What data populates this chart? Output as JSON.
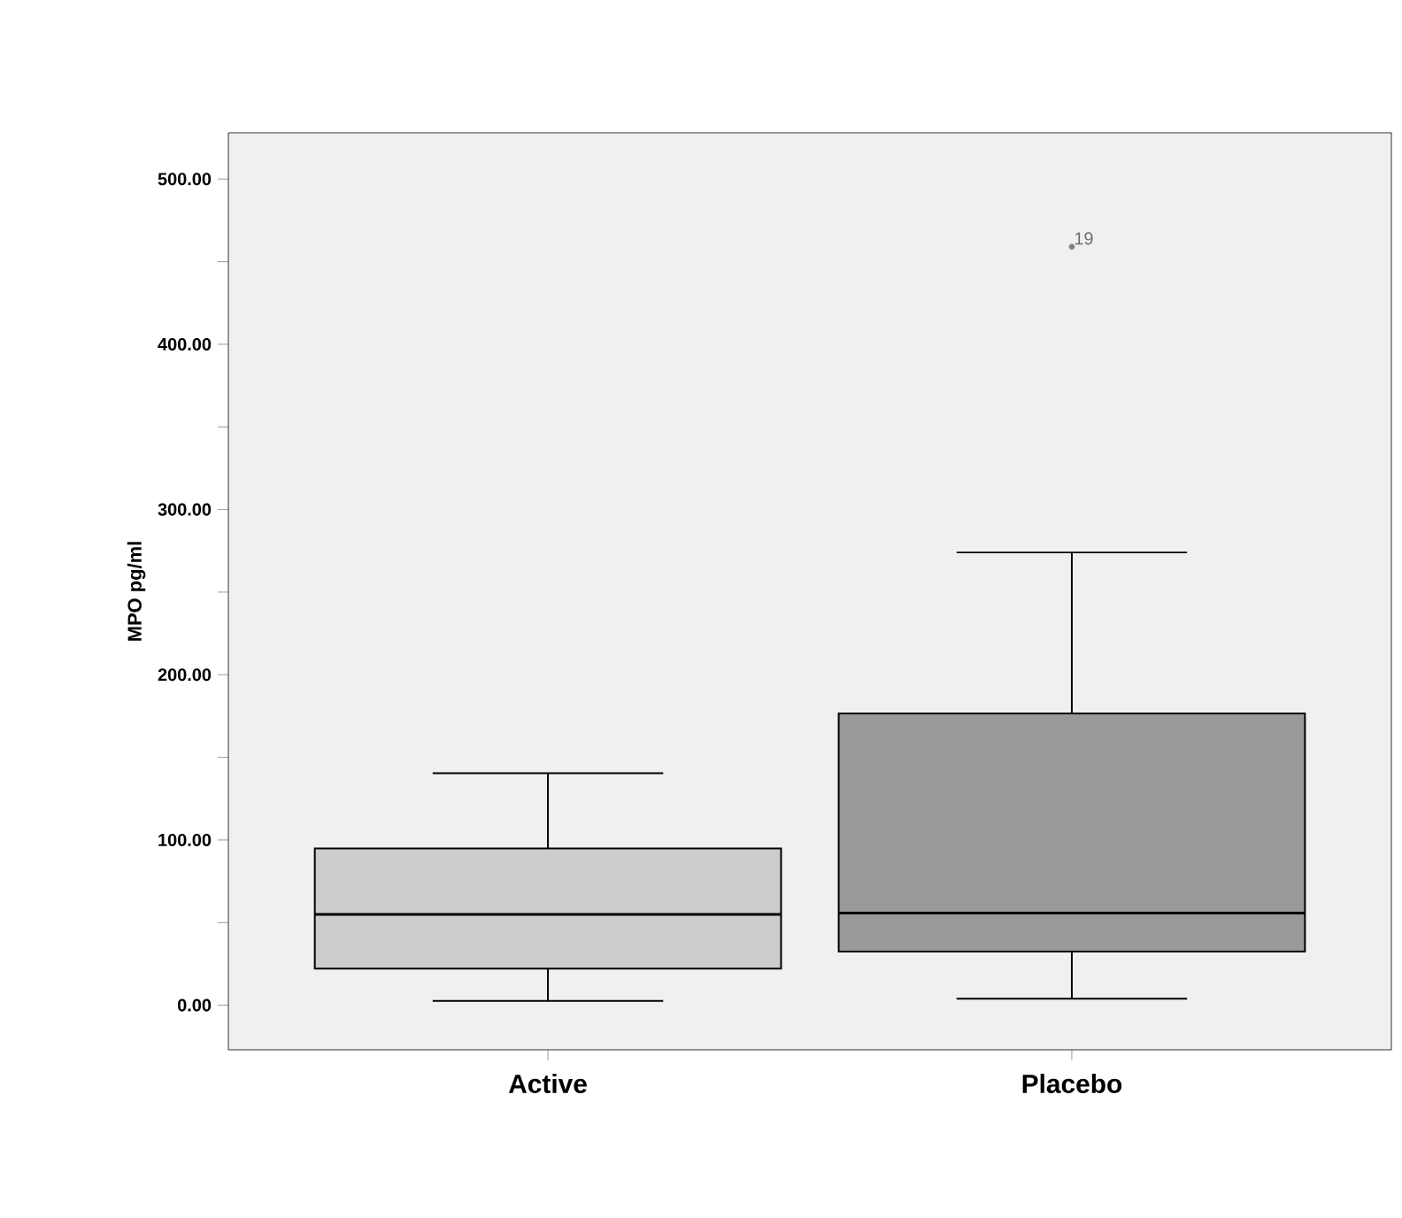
{
  "chart_data": {
    "type": "box",
    "ylabel": "MPO pg/ml",
    "categories": [
      "Active",
      "Placebo"
    ],
    "boxes": [
      {
        "low": 2.6,
        "q1": 22.2,
        "median": 55,
        "q3": 94.9,
        "high": 140.4
      },
      {
        "low": 4,
        "q1": 32.4,
        "median": 55.8,
        "q3": 176.6,
        "high": 274,
        "outliers": [
          459
        ]
      }
    ],
    "colors": [
      "#cccccc",
      "#999999"
    ],
    "ylim": [
      -27,
      528
    ],
    "yticks": [
      {
        "value": 0,
        "label": "0.00"
      },
      {
        "value": 50,
        "label": null
      },
      {
        "value": 100,
        "label": "100.00"
      },
      {
        "value": 150,
        "label": null
      },
      {
        "value": 200,
        "label": "200.00"
      },
      {
        "value": 250,
        "label": null
      },
      {
        "value": 300,
        "label": "300.00"
      },
      {
        "value": 350,
        "label": null
      },
      {
        "value": 400,
        "label": "400.00"
      },
      {
        "value": 450,
        "label": null
      },
      {
        "value": 500,
        "label": "500.00"
      }
    ],
    "annotations": [
      "19"
    ],
    "grid": false
  }
}
